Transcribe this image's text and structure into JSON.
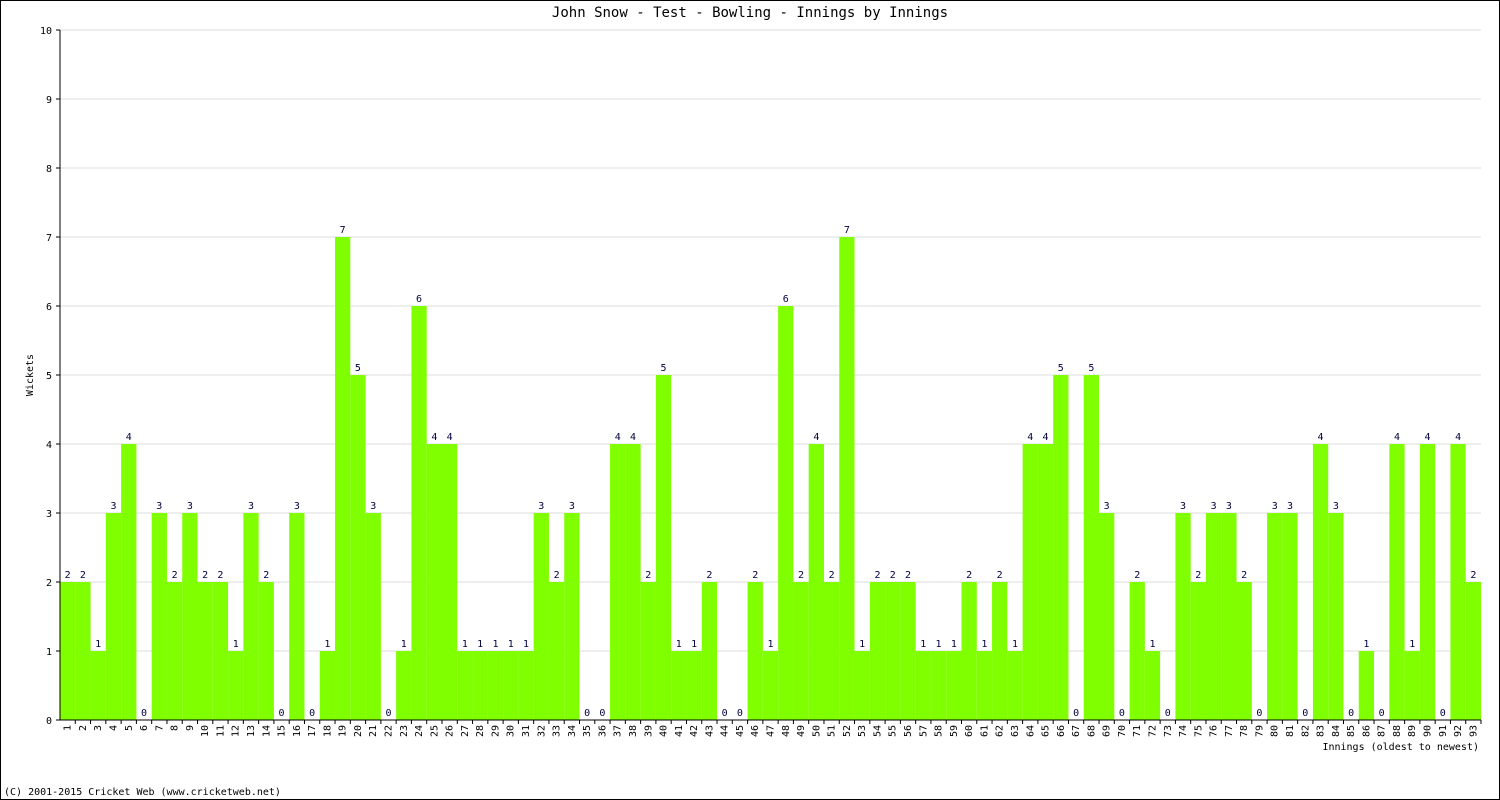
{
  "chart_data": {
    "type": "bar",
    "title": "John Snow - Test - Bowling - Innings by Innings",
    "y_label": "Wickets",
    "x_label": "Innings (oldest to newest)",
    "footer": "(C) 2001-2015 Cricket Web (www.cricketweb.net)",
    "categories": [
      "1",
      "2",
      "3",
      "4",
      "5",
      "6",
      "7",
      "8",
      "9",
      "10",
      "11",
      "12",
      "13",
      "14",
      "15",
      "16",
      "17",
      "18",
      "19",
      "20",
      "21",
      "22",
      "23",
      "24",
      "25",
      "26",
      "27",
      "28",
      "29",
      "30",
      "31",
      "32",
      "33",
      "34",
      "35",
      "36",
      "37",
      "38",
      "39",
      "40",
      "41",
      "42",
      "43",
      "44",
      "45",
      "46",
      "47",
      "48",
      "49",
      "50",
      "51",
      "52",
      "53",
      "54",
      "55",
      "56",
      "57",
      "58",
      "59",
      "60",
      "61",
      "62",
      "63",
      "64",
      "65",
      "66",
      "67",
      "68",
      "69",
      "70",
      "71",
      "72",
      "73",
      "74",
      "75",
      "76",
      "77",
      "78",
      "79",
      "80",
      "81",
      "82",
      "83",
      "84",
      "85",
      "86",
      "87",
      "88",
      "89",
      "90",
      "91",
      "92",
      "93"
    ],
    "values": [
      2,
      2,
      1,
      3,
      4,
      0,
      3,
      2,
      3,
      2,
      2,
      1,
      3,
      2,
      0,
      3,
      0,
      1,
      7,
      5,
      3,
      0,
      1,
      6,
      4,
      4,
      1,
      1,
      1,
      1,
      1,
      3,
      2,
      3,
      0,
      0,
      4,
      4,
      2,
      5,
      1,
      1,
      2,
      0,
      0,
      2,
      1,
      6,
      2,
      4,
      2,
      7,
      1,
      2,
      2,
      2,
      1,
      1,
      1,
      2,
      1,
      2,
      1,
      4,
      4,
      5,
      0,
      5,
      3,
      0,
      2,
      1,
      0,
      3,
      2,
      3,
      3,
      2,
      0,
      3,
      3,
      0,
      4,
      3,
      0,
      1,
      0,
      4,
      1,
      4,
      0,
      4,
      2
    ],
    "color": "#80ff00",
    "ylim": [
      0,
      10
    ],
    "yticks": [
      0,
      1,
      2,
      3,
      4,
      5,
      6,
      7,
      8,
      9,
      10
    ],
    "grid": true
  }
}
